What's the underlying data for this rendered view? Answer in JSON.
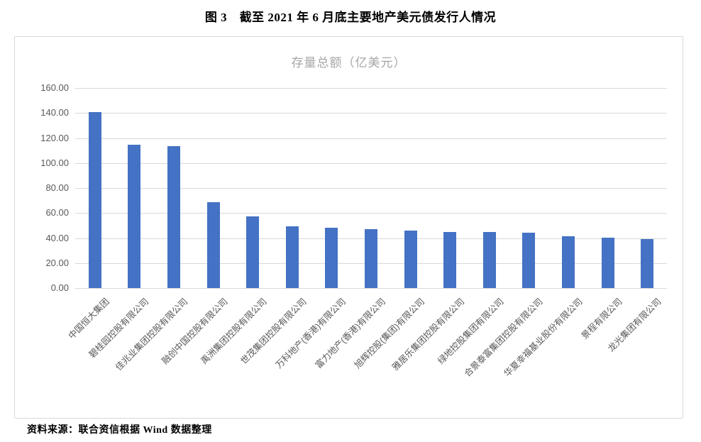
{
  "page": {
    "title": "图 3　截至 2021 年 6 月底主要地产美元债发行人情况",
    "source": "资料来源：联合资信根据 Wind 数据整理"
  },
  "chart_data": {
    "type": "bar",
    "title": "存量总额（亿美元）",
    "categories": [
      "中国恒大集团",
      "碧桂园控股有限公司",
      "佳兆业集团控股有限公司",
      "融创中国控股有限公司",
      "禹洲集团控股有限公司",
      "世茂集团控股有限公司",
      "万科地产(香港)有限公司",
      "富力地产(香港)有限公司",
      "旭辉控股(集团)有限公司",
      "雅居乐集团控股有限公司",
      "绿地控股集团有限公司",
      "合景泰富集团控股有限公司",
      "华夏幸福基业股份有限公司",
      "景程有限公司",
      "龙光集团有限公司"
    ],
    "values": [
      140.8,
      114.5,
      113.2,
      68.5,
      57.3,
      49.5,
      48.3,
      47.2,
      46.0,
      44.9,
      44.7,
      44.1,
      41.3,
      40.2,
      39.3
    ],
    "xlabel": "",
    "ylabel": "",
    "ylim": [
      0,
      160
    ],
    "ytick_step": 20,
    "ytick_labels": [
      "0.00",
      "20.00",
      "40.00",
      "60.00",
      "80.00",
      "100.00",
      "120.00",
      "140.00",
      "160.00"
    ],
    "grid": true,
    "legend": "none",
    "colors": {
      "bar": "#4472C4",
      "gridline": "#d9d9d9",
      "axis_line": "#d9d9d9",
      "tick_text": "#595959",
      "chart_title_text": "#a6a6a6"
    }
  }
}
